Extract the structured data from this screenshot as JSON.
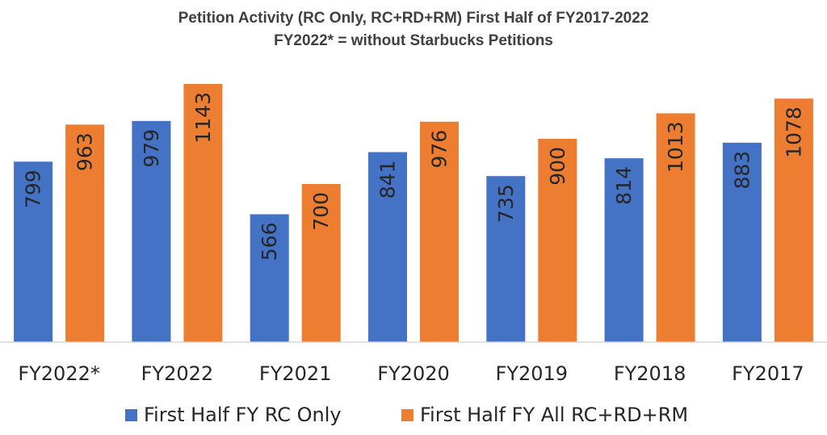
{
  "chart_data": {
    "type": "bar",
    "title": "Petition Activity (RC Only, RC+RD+RM) First Half of FY2017-2022",
    "subtitle": "FY2022* = without Starbucks Petitions",
    "categories": [
      "FY2022*",
      "FY2022",
      "FY2021",
      "FY2020",
      "FY2019",
      "FY2018",
      "FY2017"
    ],
    "series": [
      {
        "name": "First Half FY RC Only",
        "values": [
          799,
          979,
          566,
          841,
          735,
          814,
          883
        ],
        "color": "#4472C4"
      },
      {
        "name": "First Half FY All RC+RD+RM",
        "values": [
          963,
          1143,
          700,
          976,
          900,
          1013,
          1078
        ],
        "color": "#ED7D31"
      }
    ],
    "xlabel": "",
    "ylabel": "",
    "ylim": [
      0,
      1200
    ],
    "grid": false,
    "data_labels": true,
    "legend_position": "bottom"
  }
}
